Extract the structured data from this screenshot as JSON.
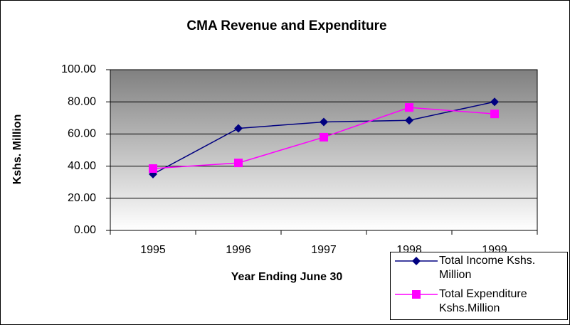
{
  "chart_data": {
    "type": "line",
    "title": "CMA Revenue and Expenditure",
    "x_label": "Year Ending June 30",
    "y_label": "Kshs. Million",
    "categories": [
      "1995",
      "1996",
      "1997",
      "1998",
      "1999"
    ],
    "series": [
      {
        "name": "Total Income Kshs. Million",
        "color": "#000080",
        "marker": "diamond",
        "values": [
          35,
          63.5,
          67.5,
          68.5,
          80
        ]
      },
      {
        "name": "Total Expenditure Kshs.Million",
        "color": "#ff00ff",
        "marker": "square",
        "values": [
          38.5,
          42,
          58,
          76.5,
          72.5
        ]
      }
    ],
    "ylim": [
      0,
      100
    ],
    "yticks": [
      {
        "value": 0,
        "label": "0.00"
      },
      {
        "value": 20,
        "label": "20.00"
      },
      {
        "value": 40,
        "label": "40.00"
      },
      {
        "value": 60,
        "label": "60.00"
      },
      {
        "value": 80,
        "label": "80.00"
      },
      {
        "value": 100,
        "label": "100.00"
      }
    ],
    "grid": true,
    "legend": "bottom-right"
  }
}
